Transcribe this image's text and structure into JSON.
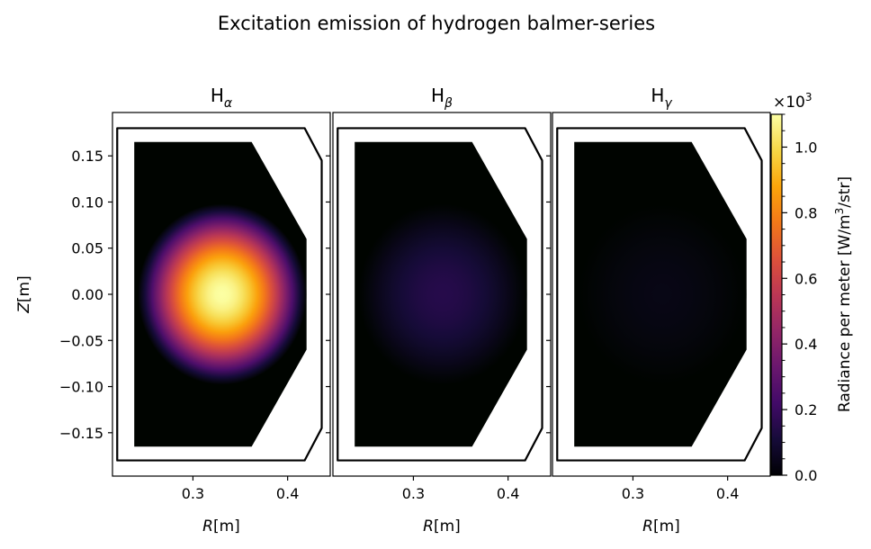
{
  "suptitle": "Excitation emission of hydrogen balmer-series",
  "chart_data": {
    "type": "heatmap",
    "title": "Excitation emission of hydrogen balmer-series",
    "panels": [
      {
        "title_base": "H",
        "title_sub": "α",
        "peak": 1100
      },
      {
        "title_base": "H",
        "title_sub": "β",
        "peak": 150
      },
      {
        "title_base": "H",
        "title_sub": "γ",
        "peak": 40
      }
    ],
    "xlabel_italic": "R",
    "xlabel_unit": "[m]",
    "ylabel_italic": "Z",
    "ylabel_unit": "[m]",
    "xlim": [
      0.215,
      0.445
    ],
    "ylim": [
      -0.197,
      0.197
    ],
    "xticks": [
      0.3,
      0.4
    ],
    "xtick_labels": [
      "0.3",
      "0.4"
    ],
    "yticks": [
      0.15,
      0.1,
      0.05,
      0.0,
      -0.05,
      -0.1,
      -0.15
    ],
    "ytick_labels": [
      "0.15",
      "0.10",
      "0.05",
      "0.00",
      "−0.05",
      "−0.10",
      "−0.15"
    ],
    "vessel_outline": [
      [
        0.22,
        0.18
      ],
      [
        0.418,
        0.18
      ],
      [
        0.436,
        0.145
      ],
      [
        0.436,
        -0.145
      ],
      [
        0.418,
        -0.18
      ],
      [
        0.22,
        -0.18
      ]
    ],
    "emission_region": [
      [
        0.238,
        0.165
      ],
      [
        0.362,
        0.165
      ],
      [
        0.42,
        0.06
      ],
      [
        0.42,
        -0.06
      ],
      [
        0.362,
        -0.165
      ],
      [
        0.238,
        -0.165
      ]
    ],
    "emission_center": [
      0.331,
      0.0
    ],
    "emission_radius_r": 0.089,
    "emission_radius_z": 0.098,
    "colormap": "inferno",
    "colorbar": {
      "label_main": "Radiance per meter [W/m",
      "label_sup": "3",
      "label_end": "/str]",
      "multiplier_base": "×10",
      "multiplier_exp": "3",
      "vmin": 0,
      "vmax": 1100,
      "ticks": [
        0,
        200,
        400,
        600,
        800,
        1000
      ],
      "tick_labels": [
        "0.0",
        "0.2",
        "0.4",
        "0.6",
        "0.8",
        "1.0"
      ],
      "minor_ticks": [
        50,
        100,
        150,
        250,
        300,
        350,
        450,
        500,
        550,
        650,
        700,
        750,
        850,
        900,
        950,
        1050,
        1100
      ]
    }
  }
}
